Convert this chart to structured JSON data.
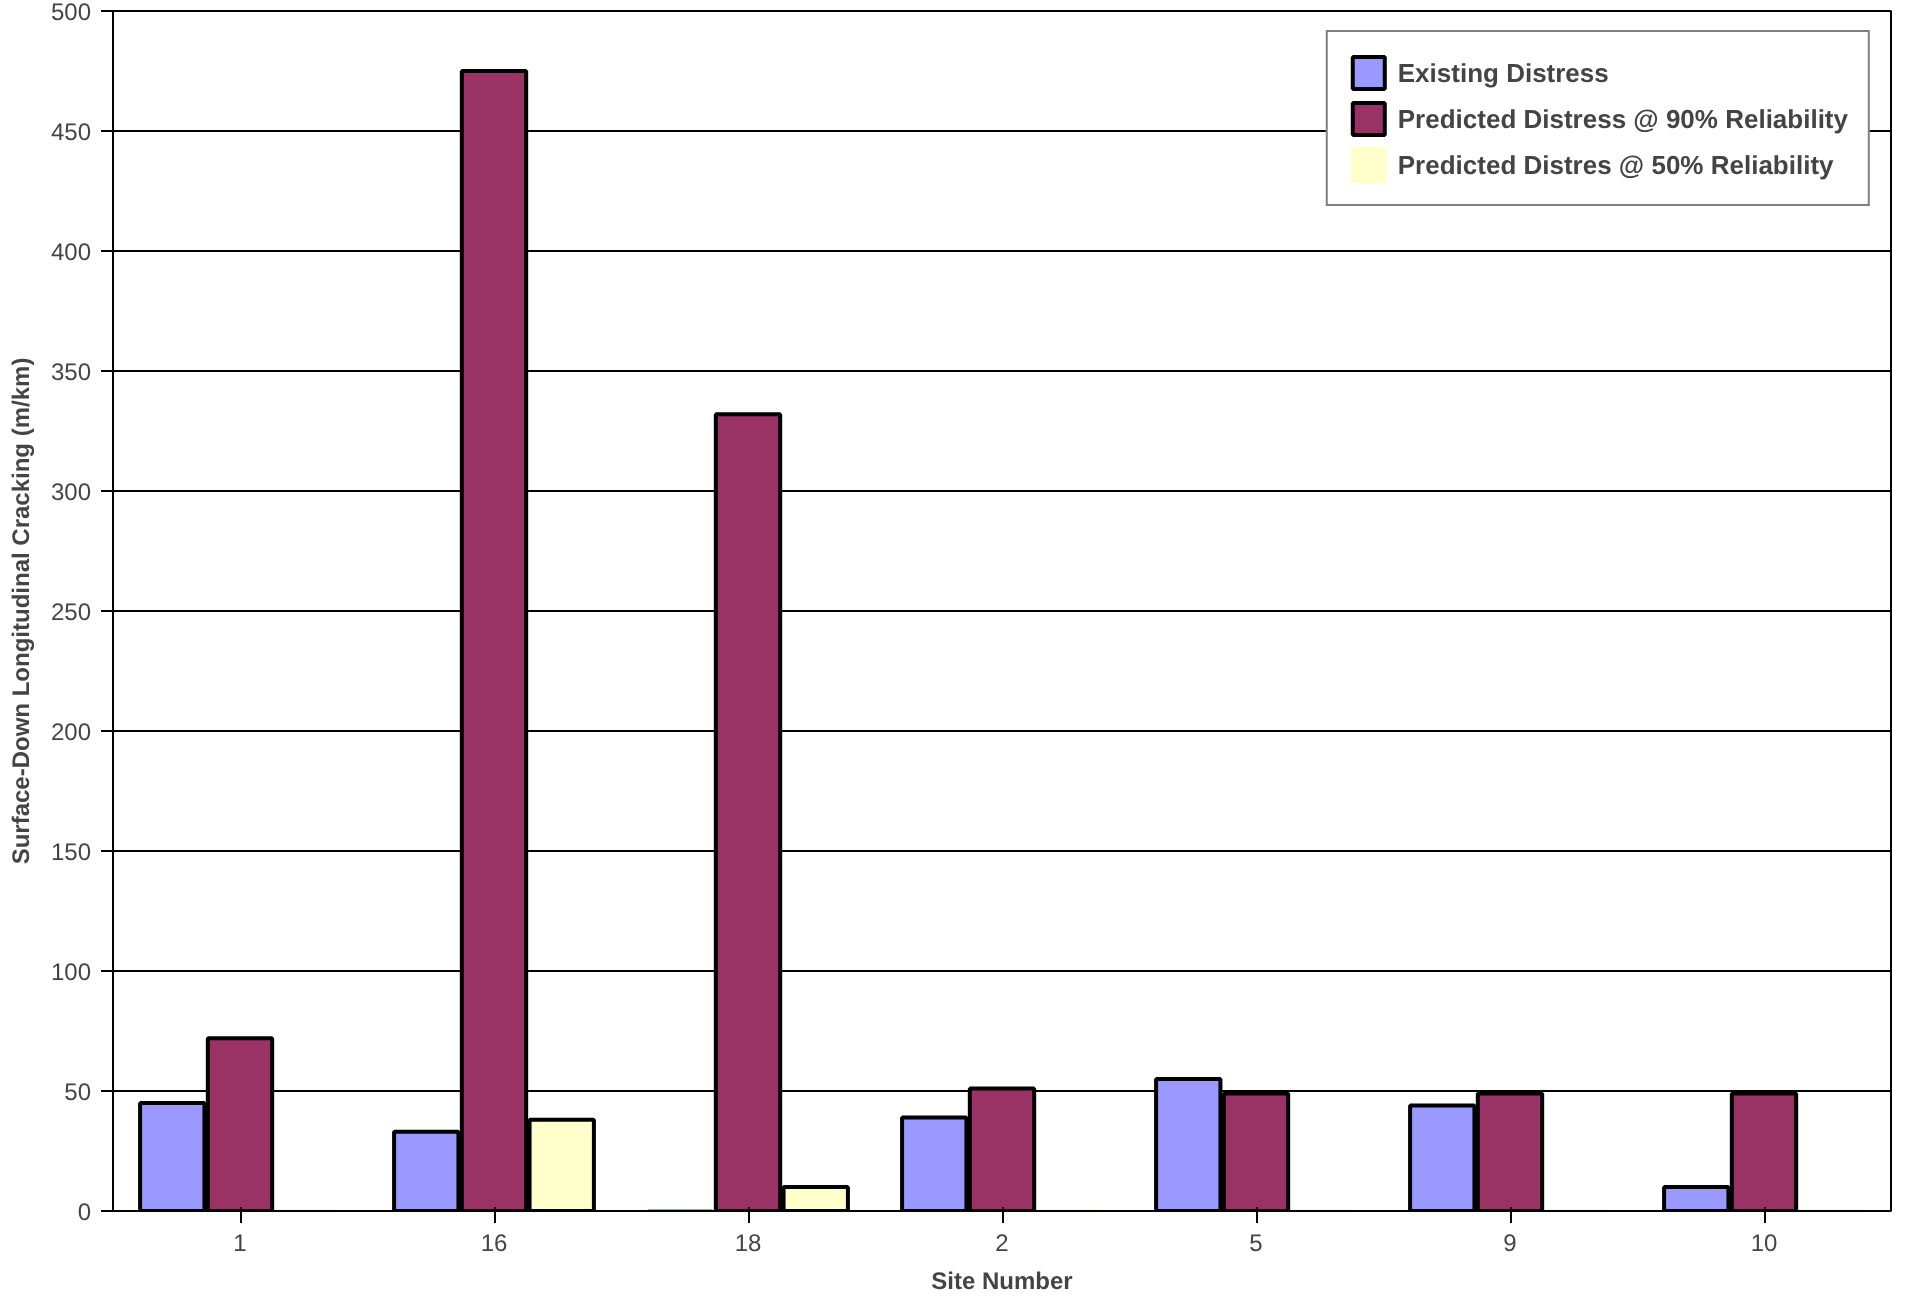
{
  "chart_data": {
    "type": "bar",
    "xlabel": "Site Number",
    "ylabel": "Surface-Down Longitudinal Cracking (m/km)",
    "categories": [
      "1",
      "16",
      "18",
      "2",
      "5",
      "9",
      "10"
    ],
    "series": [
      {
        "name": "Existing Distress",
        "color": "#9999ff",
        "values": [
          45,
          33,
          0,
          39,
          55,
          44,
          10
        ]
      },
      {
        "name": "Predicted Distress @ 90% Reliability",
        "color": "#993366",
        "values": [
          72,
          475,
          332,
          51,
          49,
          49,
          49
        ]
      },
      {
        "name": "Predicted Distres @ 50% Reliability",
        "color": "#ffffcc",
        "values": [
          0,
          38,
          10,
          0,
          0,
          0,
          0
        ]
      }
    ],
    "ylim": [
      0,
      500
    ],
    "yticks": [
      0,
      50,
      100,
      150,
      200,
      250,
      300,
      350,
      400,
      450,
      500
    ],
    "grid": "y",
    "legend": "top right"
  }
}
